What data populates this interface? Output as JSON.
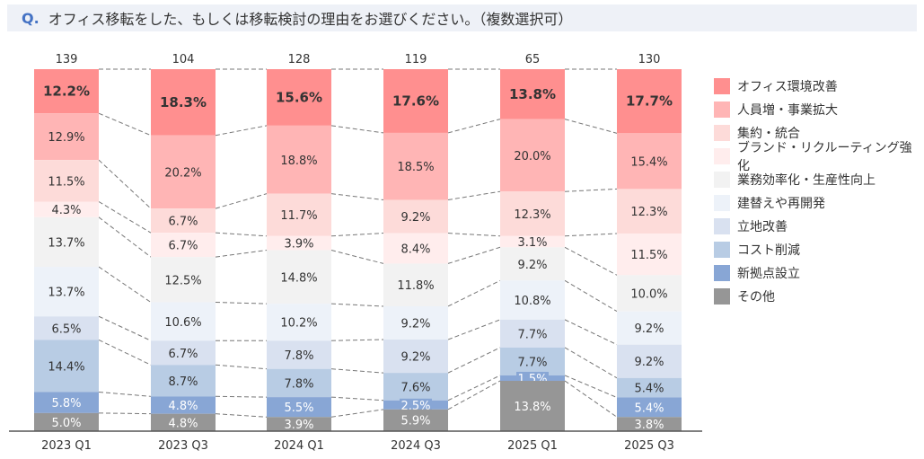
{
  "header": {
    "q_label": "Q.",
    "title": "オフィス移転をした、もしくは移転検討の理由をお選びください。（複数選択可）"
  },
  "chart_data": {
    "type": "bar",
    "stacked": true,
    "normalized": true,
    "categories": [
      "2023 Q1",
      "2023 Q3",
      "2024 Q1",
      "2024 Q3",
      "2025 Q1",
      "2025 Q3"
    ],
    "totals": [
      "139",
      "104",
      "128",
      "119",
      "65",
      "130"
    ],
    "ylim": [
      0,
      100
    ],
    "grid": false,
    "legend_position": "right",
    "series": [
      {
        "name": "オフィス環境改善",
        "color": "#ff8f8f",
        "values": [
          12.2,
          18.3,
          15.6,
          17.6,
          13.8,
          17.7
        ]
      },
      {
        "name": "人員増・事業拡大",
        "color": "#ffb5b5",
        "values": [
          12.9,
          20.2,
          18.8,
          18.5,
          20.0,
          15.4
        ]
      },
      {
        "name": "集約・統合",
        "color": "#fddbd9",
        "values": [
          11.5,
          6.7,
          11.7,
          9.2,
          12.3,
          12.3
        ]
      },
      {
        "name": "ブランド・リクルーティング強化",
        "color": "#ffeded",
        "values": [
          4.3,
          6.7,
          3.9,
          8.4,
          3.1,
          11.5
        ]
      },
      {
        "name": "業務効率化・生産性向上",
        "color": "#f2f2f2",
        "values": [
          13.7,
          12.5,
          14.8,
          11.8,
          9.2,
          10.0
        ]
      },
      {
        "name": "建替えや再開発",
        "color": "#edf2f9",
        "values": [
          13.7,
          10.6,
          10.2,
          9.2,
          10.8,
          9.2
        ]
      },
      {
        "name": "立地改善",
        "color": "#d9e1f0",
        "values": [
          6.5,
          6.7,
          7.8,
          9.2,
          7.7,
          9.2
        ]
      },
      {
        "name": "コスト削減",
        "color": "#b8cce4",
        "values": [
          14.4,
          8.7,
          7.8,
          7.6,
          7.7,
          5.4
        ]
      },
      {
        "name": "新拠点設立",
        "color": "#88a6d5",
        "values": [
          5.8,
          4.8,
          5.5,
          2.5,
          1.5,
          5.4
        ]
      },
      {
        "name": "その他",
        "color": "#969696",
        "values": [
          5.0,
          4.8,
          3.9,
          5.9,
          13.8,
          3.8
        ]
      }
    ]
  }
}
